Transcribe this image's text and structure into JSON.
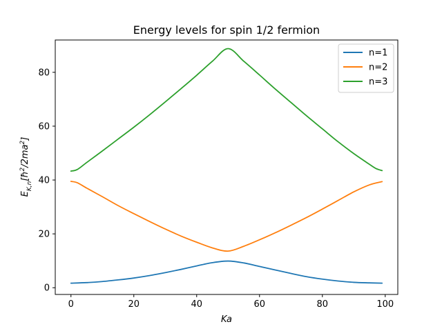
{
  "chart_data": {
    "type": "line",
    "title": "Energy levels for spin 1/2 fermion",
    "xlabel": "Ka",
    "ylabel": "E_{K,n}[ħ²/2ma²]",
    "xlim": [
      -5,
      104
    ],
    "ylim": [
      -2.5,
      92
    ],
    "xticks": [
      0,
      20,
      40,
      60,
      80,
      100
    ],
    "yticks": [
      0,
      20,
      40,
      60,
      80
    ],
    "grid": false,
    "legend_position": "top-right",
    "series": [
      {
        "name": "n=1",
        "color": "#1f77b4",
        "x": [
          0,
          5,
          10,
          15,
          20,
          25,
          30,
          35,
          40,
          45,
          50,
          55,
          60,
          65,
          70,
          75,
          80,
          85,
          90,
          95,
          99
        ],
        "values": [
          1.7,
          1.9,
          2.3,
          2.9,
          3.6,
          4.5,
          5.6,
          6.8,
          8.1,
          9.3,
          9.9,
          9.2,
          7.9,
          6.6,
          5.3,
          4.1,
          3.2,
          2.5,
          2.0,
          1.8,
          1.7
        ]
      },
      {
        "name": "n=2",
        "color": "#ff7f0e",
        "x": [
          0,
          2,
          5,
          10,
          15,
          20,
          25,
          30,
          35,
          40,
          45,
          50,
          55,
          60,
          65,
          70,
          75,
          80,
          85,
          90,
          95,
          99
        ],
        "values": [
          39.5,
          39.0,
          37.0,
          33.8,
          30.5,
          27.5,
          24.6,
          21.8,
          19.2,
          16.9,
          14.8,
          13.6,
          15.4,
          17.8,
          20.4,
          23.2,
          26.1,
          29.2,
          32.4,
          35.6,
          38.2,
          39.4
        ]
      },
      {
        "name": "n=3",
        "color": "#2ca02c",
        "x": [
          0,
          2,
          5,
          10,
          15,
          20,
          25,
          30,
          35,
          40,
          45,
          50,
          55,
          60,
          65,
          70,
          75,
          80,
          85,
          90,
          95,
          97,
          99
        ],
        "values": [
          43.3,
          43.9,
          46.5,
          50.8,
          55.2,
          59.6,
          64.2,
          69.0,
          73.9,
          78.9,
          84.1,
          88.8,
          84.1,
          79.0,
          73.8,
          68.8,
          63.8,
          59.0,
          54.2,
          49.8,
          45.8,
          44.3,
          43.5
        ]
      }
    ]
  }
}
